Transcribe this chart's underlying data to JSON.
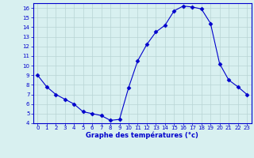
{
  "hours": [
    0,
    1,
    2,
    3,
    4,
    5,
    6,
    7,
    8,
    9,
    10,
    11,
    12,
    13,
    14,
    15,
    16,
    17,
    18,
    19,
    20,
    21,
    22,
    23
  ],
  "temps": [
    9.0,
    7.8,
    7.0,
    6.5,
    6.0,
    5.2,
    5.0,
    4.8,
    4.3,
    4.4,
    7.7,
    10.5,
    12.2,
    13.5,
    14.2,
    15.7,
    16.2,
    16.1,
    15.9,
    14.4,
    10.2,
    8.5,
    7.8,
    7.0
  ],
  "line_color": "#0000cc",
  "marker": "D",
  "marker_size": 2.5,
  "bg_color": "#d8f0f0",
  "grid_color": "#b8d4d4",
  "axis_label_color": "#0000cc",
  "xlabel": "Graphe des températures (°c)",
  "ylim": [
    4,
    16.5
  ],
  "yticks": [
    4,
    5,
    6,
    7,
    8,
    9,
    10,
    11,
    12,
    13,
    14,
    15,
    16
  ],
  "xlim": [
    -0.5,
    23.5
  ]
}
